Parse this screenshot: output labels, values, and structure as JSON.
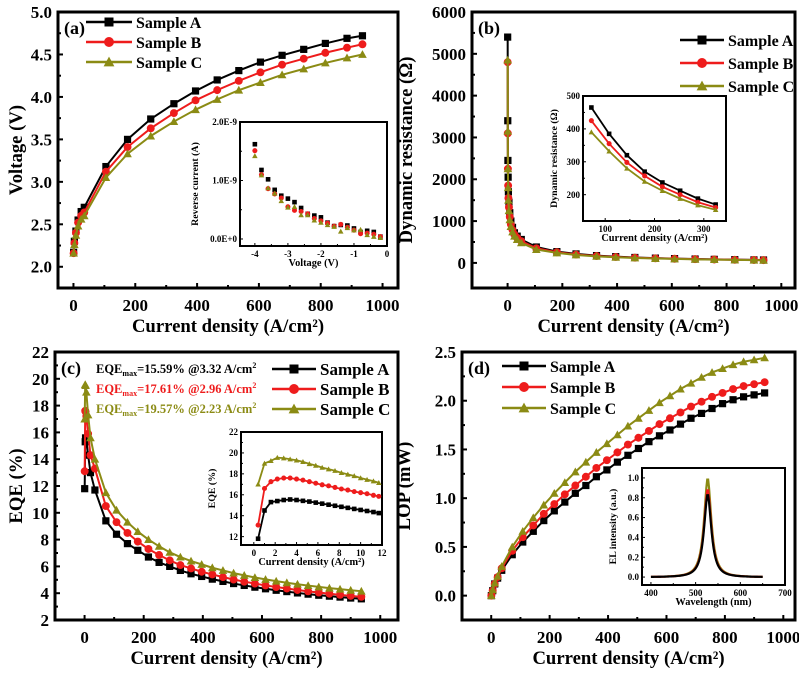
{
  "colors": {
    "A": "#000000",
    "B": "#ee1c1c",
    "C": "#8b8b14"
  },
  "chart_data": [
    {
      "id": "a",
      "type": "line",
      "panel_label": "(a)",
      "title": "",
      "xlabel": "Current density (A/cm²)",
      "ylabel": "Voltage (V)",
      "xlim": [
        -50,
        1050
      ],
      "ylim": [
        1.75,
        5.0
      ],
      "xticks": [
        0,
        200,
        400,
        600,
        800,
        1000
      ],
      "yticks": [
        2.0,
        2.5,
        3.0,
        3.5,
        4.0,
        4.5,
        5.0
      ],
      "ytick_labels": [
        "2.0",
        "2.5",
        "3.0",
        "3.5",
        "4.0",
        "4.5",
        "5.0"
      ],
      "legend": {
        "placement": "top-left",
        "entries": [
          "Sample A",
          "Sample B",
          "Sample C"
        ]
      },
      "x": [
        0.5,
        3,
        8,
        15,
        25,
        35,
        105,
        175,
        250,
        325,
        395,
        465,
        535,
        605,
        675,
        745,
        815,
        885,
        935
      ],
      "series": [
        {
          "name": "Sample A",
          "marker": "square",
          "values": [
            2.17,
            2.3,
            2.42,
            2.55,
            2.65,
            2.7,
            3.18,
            3.5,
            3.74,
            3.92,
            4.07,
            4.2,
            4.31,
            4.41,
            4.49,
            4.56,
            4.63,
            4.69,
            4.72
          ]
        },
        {
          "name": "Sample B",
          "marker": "circle",
          "values": [
            2.16,
            2.28,
            2.4,
            2.52,
            2.6,
            2.64,
            3.12,
            3.41,
            3.63,
            3.81,
            3.96,
            4.08,
            4.19,
            4.29,
            4.38,
            4.45,
            4.52,
            4.58,
            4.62
          ]
        },
        {
          "name": "Sample C",
          "marker": "triangle",
          "values": [
            2.16,
            2.26,
            2.37,
            2.48,
            2.56,
            2.6,
            3.05,
            3.33,
            3.54,
            3.71,
            3.85,
            3.97,
            4.08,
            4.17,
            4.26,
            4.33,
            4.4,
            4.46,
            4.5
          ]
        }
      ],
      "inset": {
        "type": "scatter",
        "xlabel": "Voltage (V)",
        "ylabel": "Reverse current (A)",
        "xlim": [
          -4.45,
          0
        ],
        "ylim": [
          -1.2e-10,
          2e-09
        ],
        "xticks": [
          -4,
          -3,
          -2,
          -1,
          0
        ],
        "xtick_labels": [
          "-4",
          "-3",
          "-2",
          "-1",
          "0"
        ],
        "yticks": [
          0,
          1e-09,
          2e-09
        ],
        "ytick_labels": [
          "0.0E+0",
          "1.0E-9",
          "2.0E-9"
        ],
        "x": [
          -4.0,
          -3.8,
          -3.6,
          -3.4,
          -3.2,
          -3.0,
          -2.8,
          -2.6,
          -2.4,
          -2.2,
          -2.0,
          -1.8,
          -1.6,
          -1.4,
          -1.2,
          -1.0,
          -0.8,
          -0.6,
          -0.4,
          -0.2
        ],
        "series": [
          {
            "name": "Sample A",
            "marker": "square",
            "values": [
              1.62e-09,
              1.18e-09,
              1.02e-09,
              8.4e-10,
              7.4e-10,
              6.9e-10,
              6.3e-10,
              5.3e-10,
              4.3e-10,
              4e-10,
              3.7e-10,
              2.8e-10,
              2.2e-10,
              2.4e-10,
              2.3e-10,
              1.8e-10,
              1.2e-10,
              1.4e-10,
              1.2e-10,
              4e-11
            ]
          },
          {
            "name": "Sample B",
            "marker": "circle",
            "values": [
              1.51e-09,
              1.1e-09,
              8.6e-10,
              7.7e-10,
              7e-10,
              5.5e-10,
              4.9e-10,
              4.7e-10,
              4.3e-10,
              3.5e-10,
              3.1e-10,
              2.7e-10,
              2.2e-10,
              2.5e-10,
              2e-10,
              1.5e-10,
              9e-11,
              1e-10,
              8e-11,
              4e-11
            ]
          },
          {
            "name": "Sample C",
            "marker": "triangle",
            "values": [
              1.42e-09,
              1.09e-09,
              8.7e-10,
              7.8e-10,
              6.5e-10,
              5.4e-10,
              5.5e-10,
              4.1e-10,
              4.1e-10,
              3.2e-10,
              2.8e-10,
              2.4e-10,
              2.1e-10,
              1.3e-10,
              1.9e-10,
              1.5e-10,
              1.6e-10,
              7e-11,
              4e-11,
              2e-11
            ]
          }
        ]
      }
    },
    {
      "id": "b",
      "type": "line",
      "panel_label": "(b)",
      "title": "",
      "xlabel": "Current density (A/cm²)",
      "ylabel": "Dynamic resistance (Ω)",
      "xlim": [
        -130,
        1050
      ],
      "ylim": [
        -600,
        6000
      ],
      "xticks": [
        0,
        200,
        400,
        600,
        800,
        1000
      ],
      "yticks": [
        0,
        1000,
        2000,
        3000,
        4000,
        5000,
        6000
      ],
      "legend": {
        "placement": "top-right",
        "entries": [
          "Sample A",
          "Sample B",
          "Sample C"
        ]
      },
      "x": [
        0.3,
        0.7,
        1.2,
        2,
        3,
        5,
        8,
        12,
        18,
        25,
        35,
        50,
        105,
        180,
        250,
        325,
        395,
        465,
        540,
        610,
        685,
        755,
        830,
        900,
        935
      ],
      "series": [
        {
          "name": "Sample A",
          "marker": "square",
          "values": [
            5400,
            3400,
            2450,
            2050,
            1700,
            1450,
            1200,
            1000,
            850,
            720,
            640,
            560,
            380,
            270,
            215,
            175,
            150,
            130,
            115,
            103,
            93,
            85,
            78,
            72,
            70
          ]
        },
        {
          "name": "Sample B",
          "marker": "circle",
          "values": [
            4800,
            3100,
            2250,
            1850,
            1550,
            1330,
            1100,
            920,
            790,
            680,
            600,
            520,
            350,
            255,
            200,
            165,
            142,
            124,
            110,
            99,
            90,
            82,
            75,
            70,
            67
          ]
        },
        {
          "name": "Sample C",
          "marker": "triangle",
          "values": [
            4850,
            3150,
            2250,
            1800,
            1500,
            1250,
            1030,
            870,
            740,
            640,
            560,
            480,
            320,
            240,
            190,
            157,
            135,
            118,
            105,
            95,
            86,
            79,
            72,
            67,
            64
          ]
        }
      ],
      "inset": {
        "type": "line",
        "xlabel": "Current density (A/cm²)",
        "ylabel": "Dynamic resistance (Ω)",
        "xlim": [
          55,
          345
        ],
        "ylim": [
          120,
          500
        ],
        "xticks": [
          100,
          200,
          300
        ],
        "yticks": [
          200,
          300,
          400,
          500
        ],
        "x": [
          72,
          108,
          144,
          180,
          216,
          252,
          288,
          324
        ],
        "series": [
          {
            "name": "Sample A",
            "marker": "square",
            "values": [
              465,
              385,
              320,
              270,
              237,
              212,
              188,
              170
            ]
          },
          {
            "name": "Sample B",
            "marker": "circle",
            "values": [
              425,
              355,
              298,
              257,
              224,
              200,
              177,
              161
            ]
          },
          {
            "name": "Sample C",
            "marker": "triangle",
            "values": [
              390,
              332,
              280,
              240,
              212,
              188,
              168,
              154
            ]
          }
        ]
      }
    },
    {
      "id": "c",
      "type": "line",
      "panel_label": "(c)",
      "title": "",
      "xlabel": "Current density (A/cm²)",
      "ylabel": "EQE (%)",
      "xlim": [
        -100,
        1060
      ],
      "ylim": [
        2,
        22
      ],
      "xticks": [
        0,
        200,
        400,
        600,
        800,
        1000
      ],
      "yticks": [
        2,
        4,
        6,
        8,
        10,
        12,
        14,
        16,
        18,
        20,
        22
      ],
      "legend": {
        "placement": "top-right",
        "entries": [
          "Sample A",
          "Sample B",
          "Sample C"
        ]
      },
      "annotations": [
        {
          "prefix": "EQE",
          "sub": "max",
          "text": "=15.59% @3.32 A/cm",
          "sup": "2",
          "series": "Sample A"
        },
        {
          "prefix": "EQE",
          "sub": "max",
          "text": "=17.61% @2.96 A/cm",
          "sup": "2",
          "series": "Sample B"
        },
        {
          "prefix": "EQE",
          "sub": "max",
          "text": "=19.57% @2.23 A/cm",
          "sup": "2",
          "series": "Sample C"
        }
      ],
      "x": [
        0.4,
        2.2,
        3.3,
        6,
        12,
        20,
        35,
        72,
        108,
        145,
        180,
        216,
        252,
        288,
        324,
        360,
        396,
        432,
        468,
        504,
        540,
        576,
        612,
        648,
        684,
        720,
        756,
        792,
        828,
        864,
        900,
        936
      ],
      "series": [
        {
          "name": "Sample A",
          "marker": "square",
          "values": [
            11.8,
            15.3,
            15.59,
            15.4,
            14.3,
            13.0,
            11.7,
            9.4,
            8.4,
            7.7,
            7.2,
            6.7,
            6.3,
            6.0,
            5.7,
            5.45,
            5.25,
            5.05,
            4.88,
            4.72,
            4.58,
            4.45,
            4.33,
            4.22,
            4.12,
            4.02,
            3.93,
            3.85,
            3.78,
            3.71,
            3.64,
            3.58
          ]
        },
        {
          "name": "Sample B",
          "marker": "circle",
          "values": [
            13.1,
            17.61,
            17.55,
            17.2,
            15.9,
            14.3,
            13.3,
            10.5,
            9.3,
            8.5,
            7.85,
            7.3,
            6.85,
            6.45,
            6.1,
            5.85,
            5.6,
            5.4,
            5.2,
            5.02,
            4.86,
            4.72,
            4.58,
            4.46,
            4.35,
            4.24,
            4.14,
            4.05,
            3.96,
            3.88,
            3.8,
            3.73
          ]
        },
        {
          "name": "Sample C",
          "marker": "triangle",
          "values": [
            17.0,
            19.57,
            19.5,
            19.0,
            17.3,
            15.6,
            14.0,
            11.5,
            10.2,
            9.3,
            8.6,
            8.0,
            7.5,
            7.05,
            6.7,
            6.4,
            6.15,
            5.9,
            5.7,
            5.5,
            5.33,
            5.17,
            5.03,
            4.9,
            4.78,
            4.67,
            4.57,
            4.47,
            4.38,
            4.3,
            4.22,
            4.15
          ]
        }
      ],
      "inset": {
        "type": "line",
        "xlabel": "Current density (A/cm²)",
        "ylabel": "EQE (%)",
        "xlim": [
          -1.2,
          12
        ],
        "ylim": [
          11.2,
          22
        ],
        "xticks": [
          0,
          2,
          4,
          6,
          8,
          10,
          12
        ],
        "yticks": [
          12,
          14,
          16,
          18,
          20,
          22
        ],
        "x": [
          0.4,
          1.0,
          1.6,
          2.2,
          2.8,
          3.4,
          4.0,
          4.6,
          5.2,
          5.8,
          6.4,
          7.0,
          7.6,
          8.2,
          8.8,
          9.4,
          10.0,
          10.6,
          11.2,
          11.7
        ],
        "series": [
          {
            "name": "Sample A",
            "marker": "square",
            "values": [
              11.8,
              14.5,
              15.3,
              15.4,
              15.5,
              15.55,
              15.5,
              15.42,
              15.35,
              15.25,
              15.15,
              15.05,
              14.95,
              14.85,
              14.75,
              14.65,
              14.55,
              14.45,
              14.35,
              14.25
            ]
          },
          {
            "name": "Sample B",
            "marker": "circle",
            "values": [
              13.1,
              16.6,
              17.25,
              17.5,
              17.6,
              17.6,
              17.5,
              17.4,
              17.25,
              17.1,
              16.95,
              16.85,
              16.7,
              16.55,
              16.45,
              16.3,
              16.2,
              16.1,
              15.95,
              15.85
            ]
          },
          {
            "name": "Sample C",
            "marker": "triangle",
            "values": [
              17.0,
              19.0,
              19.25,
              19.55,
              19.5,
              19.4,
              19.3,
              19.15,
              18.95,
              18.8,
              18.6,
              18.45,
              18.3,
              18.1,
              17.95,
              17.8,
              17.6,
              17.45,
              17.3,
              17.15
            ]
          }
        ]
      }
    },
    {
      "id": "d",
      "type": "line",
      "panel_label": "(d)",
      "title": "",
      "xlabel": "Current density (A/cm²)",
      "ylabel": "LOP (mW)",
      "xlim": [
        -100,
        1040
      ],
      "ylim": [
        -0.25,
        2.5
      ],
      "xticks": [
        0,
        200,
        400,
        600,
        800,
        1000
      ],
      "yticks": [
        0.0,
        0.5,
        1.0,
        1.5,
        2.0,
        2.5
      ],
      "ytick_labels": [
        "0.0",
        "0.5",
        "1.0",
        "1.5",
        "2.0",
        "2.5"
      ],
      "legend": {
        "placement": "top-left",
        "entries": [
          "Sample A",
          "Sample B",
          "Sample C"
        ]
      },
      "x": [
        0.5,
        5,
        12,
        22,
        36,
        72,
        108,
        144,
        180,
        216,
        252,
        288,
        324,
        360,
        396,
        432,
        468,
        504,
        540,
        576,
        612,
        648,
        684,
        720,
        756,
        792,
        828,
        864,
        900,
        936
      ],
      "series": [
        {
          "name": "Sample A",
          "marker": "square",
          "values": [
            0.0,
            0.05,
            0.12,
            0.18,
            0.26,
            0.42,
            0.55,
            0.66,
            0.77,
            0.87,
            0.96,
            1.05,
            1.13,
            1.22,
            1.29,
            1.37,
            1.44,
            1.51,
            1.58,
            1.64,
            1.7,
            1.76,
            1.82,
            1.87,
            1.92,
            1.97,
            2.01,
            2.04,
            2.06,
            2.08
          ]
        },
        {
          "name": "Sample B",
          "marker": "circle",
          "values": [
            0.0,
            0.05,
            0.12,
            0.19,
            0.28,
            0.46,
            0.6,
            0.72,
            0.84,
            0.94,
            1.04,
            1.13,
            1.22,
            1.31,
            1.39,
            1.47,
            1.55,
            1.62,
            1.69,
            1.76,
            1.82,
            1.88,
            1.94,
            1.99,
            2.04,
            2.08,
            2.12,
            2.15,
            2.17,
            2.19
          ]
        },
        {
          "name": "Sample C",
          "marker": "triangle",
          "values": [
            0.0,
            0.06,
            0.13,
            0.2,
            0.3,
            0.5,
            0.66,
            0.8,
            0.93,
            1.05,
            1.16,
            1.27,
            1.37,
            1.47,
            1.56,
            1.65,
            1.74,
            1.82,
            1.9,
            1.98,
            2.05,
            2.12,
            2.18,
            2.24,
            2.29,
            2.33,
            2.37,
            2.4,
            2.42,
            2.44
          ]
        }
      ],
      "inset": {
        "type": "line",
        "xlabel": "Wavelength (nm)",
        "ylabel": "EL intensity (a.u.)",
        "xlim": [
          380,
          700
        ],
        "ylim": [
          -0.08,
          1.1
        ],
        "xticks": [
          400,
          500,
          600,
          700
        ],
        "yticks": [
          0.0,
          0.2,
          0.4,
          0.6,
          0.8,
          1.0
        ],
        "ytick_labels": [
          "0.0",
          "0.2",
          "0.4",
          "0.6",
          "0.8",
          "1.0"
        ],
        "peak_nm": 527,
        "series": [
          {
            "name": "Sample A",
            "peak": 0.84
          },
          {
            "name": "Sample B",
            "peak": 0.89
          },
          {
            "name": "Sample C",
            "peak": 1.0
          }
        ]
      }
    }
  ]
}
